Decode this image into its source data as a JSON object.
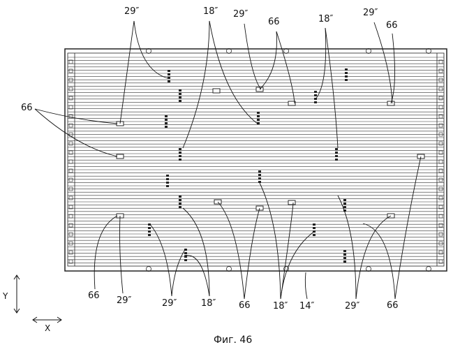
{
  "figure": {
    "caption": "Фиг. 46"
  },
  "axes": {
    "y_label": "Y",
    "x_label": "X"
  },
  "labels": {
    "l29": "29″",
    "l18": "18″",
    "l66": "66",
    "l14": "14″"
  }
}
